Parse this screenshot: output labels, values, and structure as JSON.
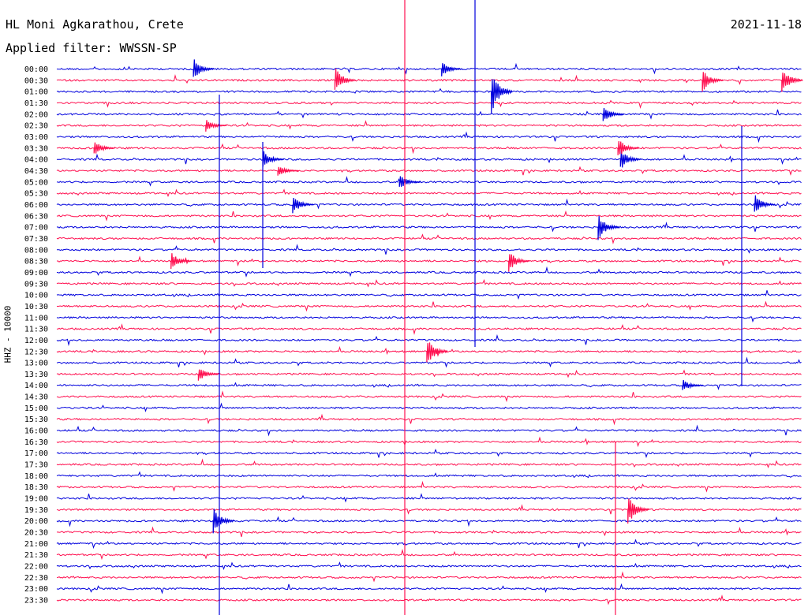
{
  "header": {
    "station": "HL Moni Agkarathou, Crete",
    "date": "2021-11-18",
    "filter": "Applied filter: WWSSN-SP",
    "channel": "HHZ - 10000"
  },
  "colors": {
    "trace_a": "#0000dd",
    "trace_b": "#ff1050"
  },
  "chart_data": {
    "type": "line",
    "title": "HL Moni Agkarathou, Crete",
    "subtitle": "Applied filter: WWSSN-SP",
    "ylabel": "HHZ - 10000",
    "y_tick_labels": [
      "00:00",
      "00:30",
      "01:00",
      "01:30",
      "02:00",
      "02:30",
      "03:00",
      "03:30",
      "04:00",
      "04:30",
      "05:00",
      "05:30",
      "06:00",
      "06:30",
      "07:00",
      "07:30",
      "08:00",
      "08:30",
      "09:00",
      "09:30",
      "10:00",
      "10:30",
      "11:00",
      "11:30",
      "12:00",
      "12:30",
      "13:00",
      "13:30",
      "14:00",
      "14:30",
      "15:00",
      "15:30",
      "16:00",
      "16:30",
      "17:00",
      "17:30",
      "18:00",
      "18:30",
      "19:00",
      "19:30",
      "20:00",
      "20:30",
      "21:00",
      "21:30",
      "22:00",
      "22:30",
      "23:00",
      "23:30"
    ],
    "x_unit": "minutes within 30-min row",
    "xlim": [
      0,
      30
    ],
    "series_colors_alternate": [
      "blue",
      "red"
    ],
    "events": [
      {
        "row": 0,
        "x": 5.5,
        "amp": 14,
        "color": "blue"
      },
      {
        "row": 1,
        "x": 11.2,
        "amp": 18,
        "color": "red"
      },
      {
        "row": 0,
        "x": 15.5,
        "amp": 10,
        "color": "blue"
      },
      {
        "row": 2,
        "x": 17.5,
        "amp": 30,
        "color": "blue"
      },
      {
        "row": 1,
        "x": 26.0,
        "amp": 16,
        "color": "red"
      },
      {
        "row": 1,
        "x": 29.2,
        "amp": 18,
        "color": "red"
      },
      {
        "row": 4,
        "x": 22.0,
        "amp": 12,
        "color": "blue"
      },
      {
        "row": 5,
        "x": 6.0,
        "amp": 8,
        "color": "red"
      },
      {
        "row": 7,
        "x": 1.5,
        "amp": 10,
        "color": "red"
      },
      {
        "row": 8,
        "x": 8.3,
        "amp": 12,
        "color": "blue"
      },
      {
        "row": 8,
        "x": 22.7,
        "amp": 14,
        "color": "blue"
      },
      {
        "row": 7,
        "x": 22.6,
        "amp": 14,
        "color": "red"
      },
      {
        "row": 9,
        "x": 8.9,
        "amp": 8,
        "color": "red"
      },
      {
        "row": 10,
        "x": 13.8,
        "amp": 10,
        "color": "blue"
      },
      {
        "row": 12,
        "x": 9.5,
        "amp": 12,
        "color": "blue"
      },
      {
        "row": 12,
        "x": 28.1,
        "amp": 14,
        "color": "blue"
      },
      {
        "row": 14,
        "x": 21.8,
        "amp": 18,
        "color": "blue"
      },
      {
        "row": 17,
        "x": 4.6,
        "amp": 12,
        "color": "red"
      },
      {
        "row": 17,
        "x": 18.2,
        "amp": 14,
        "color": "red"
      },
      {
        "row": 25,
        "x": 14.9,
        "amp": 20,
        "color": "red"
      },
      {
        "row": 27,
        "x": 5.7,
        "amp": 10,
        "color": "red"
      },
      {
        "row": 28,
        "x": 25.2,
        "amp": 8,
        "color": "blue"
      },
      {
        "row": 39,
        "x": 23.0,
        "amp": 20,
        "color": "red"
      },
      {
        "row": 40,
        "x": 6.3,
        "amp": 18,
        "color": "blue"
      }
    ]
  }
}
